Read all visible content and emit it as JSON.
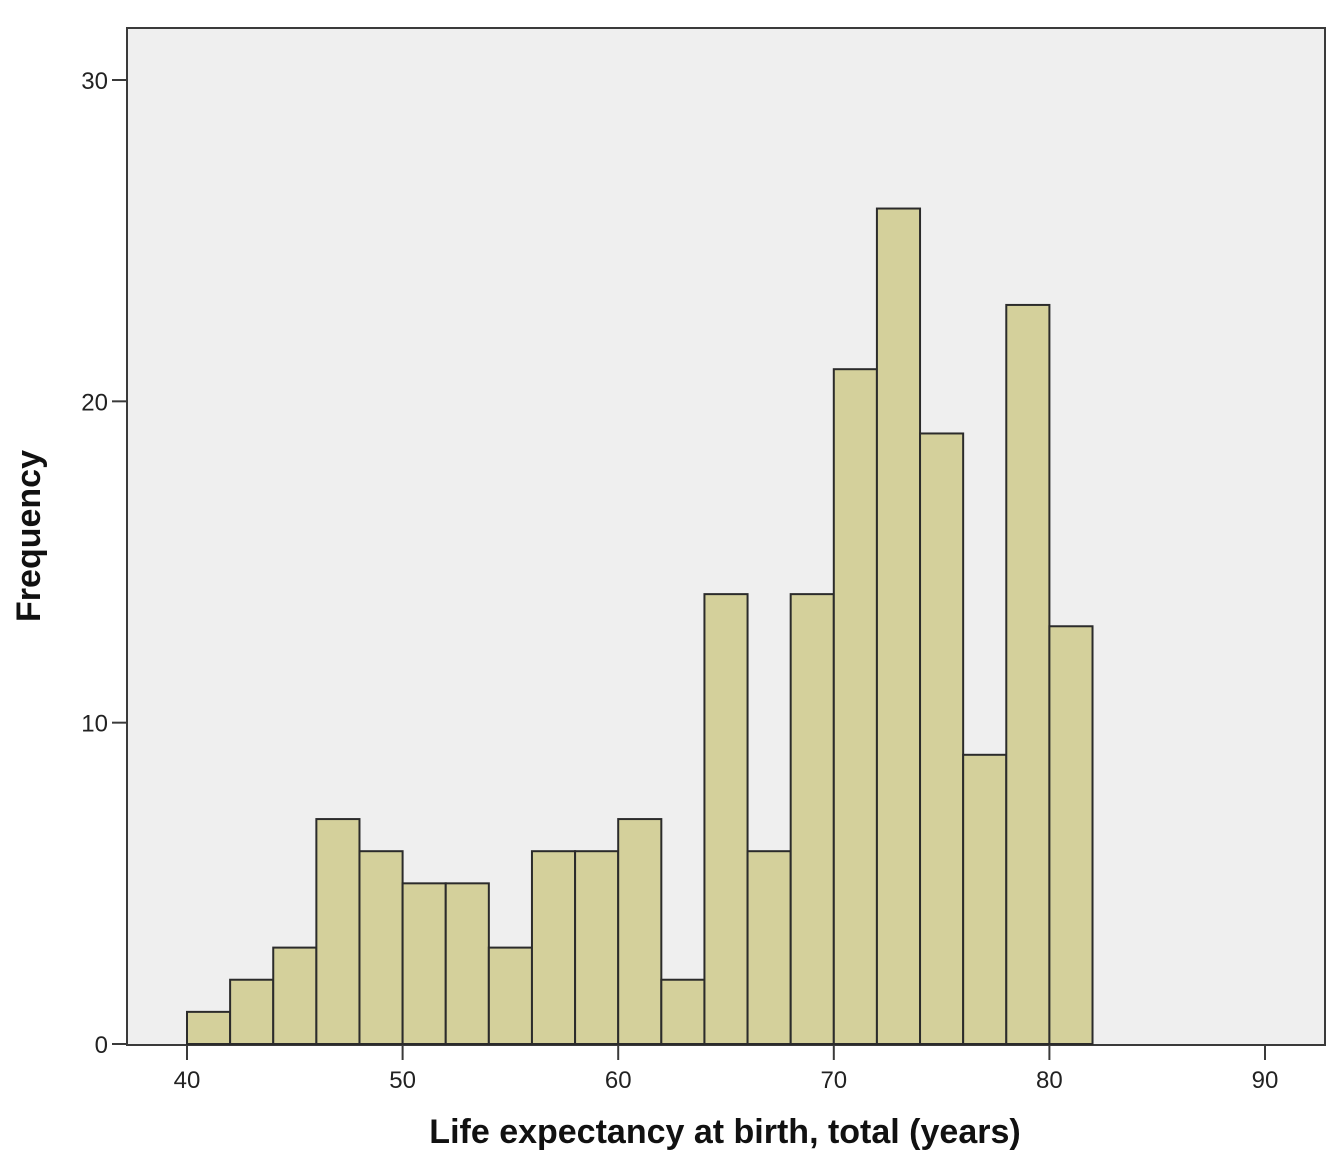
{
  "chart_data": {
    "type": "bar",
    "xlabel": "Life expectancy at birth, total (years)",
    "ylabel": "Frequency",
    "xlim": [
      40,
      90
    ],
    "ylim": [
      0,
      30
    ],
    "x_ticks": [
      40,
      50,
      60,
      70,
      80,
      90
    ],
    "y_ticks": [
      0,
      10,
      20,
      30
    ],
    "grid": false,
    "colors": {
      "bar_fill": "#d4d09b",
      "bar_stroke": "#2b2b2b",
      "plot_background": "#efefef",
      "frame": "#3a3a3a"
    },
    "bins": [
      {
        "x0": 40,
        "x1": 42,
        "count": 1
      },
      {
        "x0": 42,
        "x1": 44,
        "count": 2
      },
      {
        "x0": 44,
        "x1": 46,
        "count": 3
      },
      {
        "x0": 46,
        "x1": 48,
        "count": 7
      },
      {
        "x0": 48,
        "x1": 50,
        "count": 6
      },
      {
        "x0": 50,
        "x1": 52,
        "count": 5
      },
      {
        "x0": 52,
        "x1": 54,
        "count": 5
      },
      {
        "x0": 54,
        "x1": 56,
        "count": 3
      },
      {
        "x0": 56,
        "x1": 58,
        "count": 6
      },
      {
        "x0": 58,
        "x1": 60,
        "count": 6
      },
      {
        "x0": 60,
        "x1": 62,
        "count": 7
      },
      {
        "x0": 62,
        "x1": 64,
        "count": 2
      },
      {
        "x0": 64,
        "x1": 66,
        "count": 14
      },
      {
        "x0": 66,
        "x1": 68,
        "count": 6
      },
      {
        "x0": 68,
        "x1": 70,
        "count": 14
      },
      {
        "x0": 70,
        "x1": 72,
        "count": 21
      },
      {
        "x0": 72,
        "x1": 74,
        "count": 26
      },
      {
        "x0": 74,
        "x1": 76,
        "count": 19
      },
      {
        "x0": 76,
        "x1": 78,
        "count": 9
      },
      {
        "x0": 78,
        "x1": 80,
        "count": 23
      },
      {
        "x0": 80,
        "x1": 82,
        "count": 13
      }
    ]
  }
}
